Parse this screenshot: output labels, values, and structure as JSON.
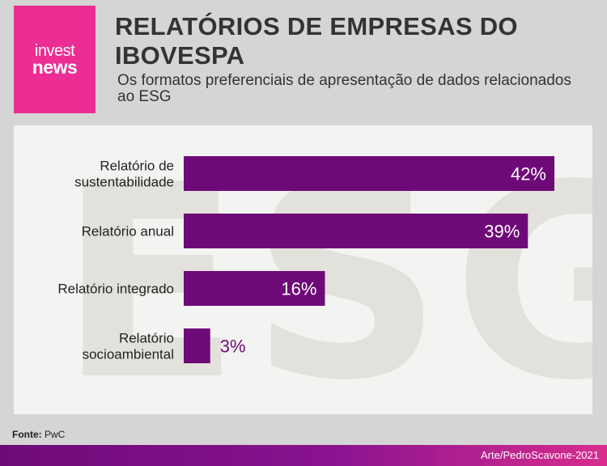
{
  "logo": {
    "line1": "invest",
    "line2": "news"
  },
  "header": {
    "title": "RELATÓRIOS DE EMPRESAS DO IBOVESPA",
    "subtitle": "Os formatos preferenciais de apresentação de dados relacionados ao ESG"
  },
  "watermark": "ESG",
  "source": {
    "label": "Fonte:",
    "value": "PwC"
  },
  "footer": {
    "credit": "Arte/PedroScavone-2021"
  },
  "colors": {
    "bar": "#6e0a78",
    "label_inside": "#ffffff",
    "label_outside": "#6e0a78",
    "accent": "#ec2d93"
  },
  "chart_data": {
    "type": "bar",
    "orientation": "horizontal",
    "categories": [
      [
        "Relatório de",
        "sustentabilidade"
      ],
      [
        "Relatório anual"
      ],
      [
        "Relatório integrado"
      ],
      [
        "Relatório",
        "socioambiental"
      ]
    ],
    "values": [
      42,
      39,
      16,
      3
    ],
    "value_labels": [
      "42%",
      "39%",
      "16%",
      "3%"
    ],
    "unit": "%",
    "xlim": [
      0,
      42
    ],
    "grid": false,
    "legend": "none"
  }
}
